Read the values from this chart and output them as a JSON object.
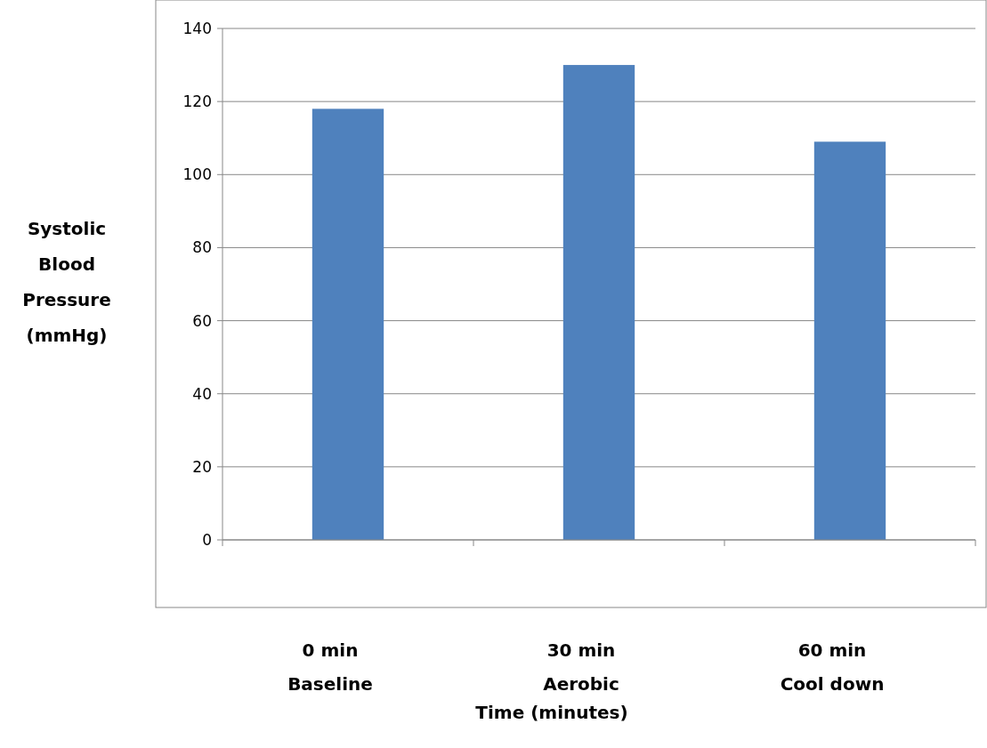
{
  "chart_data": {
    "type": "bar",
    "categories": [
      "0 min\nBaseline",
      "30 min\nAerobic",
      "60 min\nCool down"
    ],
    "values": [
      118,
      130,
      109
    ],
    "color": "#4f81bd",
    "xlabel": "Time (minutes)",
    "ylabel": "Systolic Blood Pressure (mmHg)",
    "ylim": [
      0,
      140
    ],
    "yticks": [
      0,
      20,
      40,
      60,
      80,
      100,
      120,
      140
    ],
    "grid": "y"
  }
}
